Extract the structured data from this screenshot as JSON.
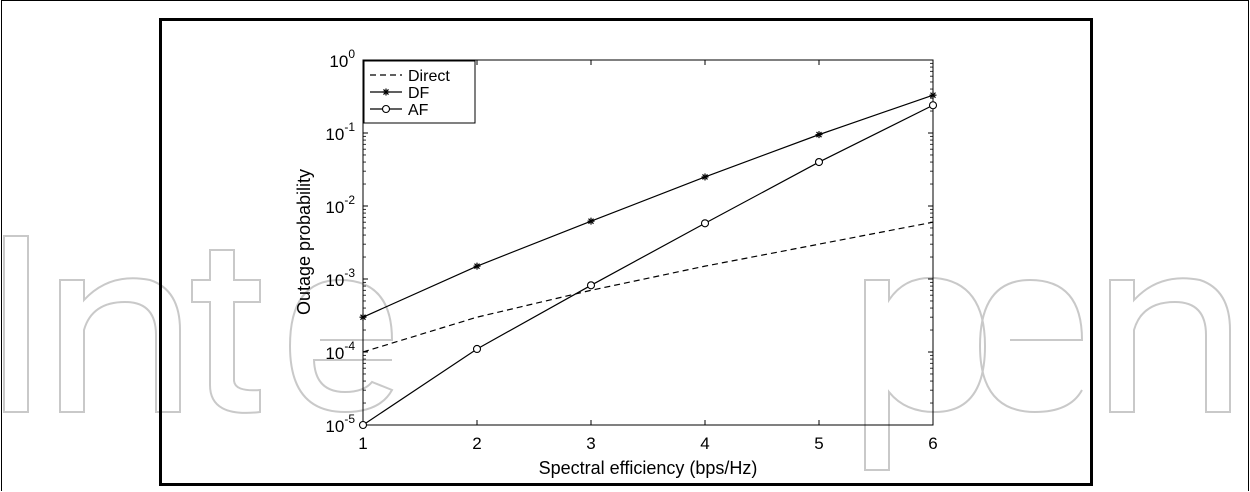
{
  "chart_data": {
    "type": "line",
    "xlabel": "Spectral efficiency (bps/Hz)",
    "ylabel": "Outage probability",
    "x": [
      1,
      2,
      3,
      4,
      5,
      6
    ],
    "xlim": [
      1,
      6
    ],
    "ylim": [
      1e-05,
      1
    ],
    "yscale": "log",
    "x_ticks": [
      "1",
      "2",
      "3",
      "4",
      "5",
      "6"
    ],
    "y_ticks": [
      {
        "base": "10",
        "exp": "0"
      },
      {
        "base": "10",
        "exp": "-1"
      },
      {
        "base": "10",
        "exp": "-2"
      },
      {
        "base": "10",
        "exp": "-3"
      },
      {
        "base": "10",
        "exp": "-4"
      },
      {
        "base": "10",
        "exp": "-5"
      }
    ],
    "grid": false,
    "legend_position": "top-left",
    "series": [
      {
        "name": "Direct",
        "style": "dashed",
        "marker": "none",
        "values": [
          0.0001,
          0.0003,
          0.0007,
          0.0015,
          0.003,
          0.006
        ]
      },
      {
        "name": "DF",
        "style": "solid",
        "marker": "star",
        "values": [
          0.0003,
          0.0015,
          0.0062,
          0.025,
          0.095,
          0.33
        ]
      },
      {
        "name": "AF",
        "style": "solid",
        "marker": "circle",
        "values": [
          1e-05,
          0.00011,
          0.00082,
          0.0058,
          0.04,
          0.24
        ]
      }
    ]
  },
  "watermark": {
    "text": "IntechOpen",
    "color": "#c8c8c8"
  }
}
